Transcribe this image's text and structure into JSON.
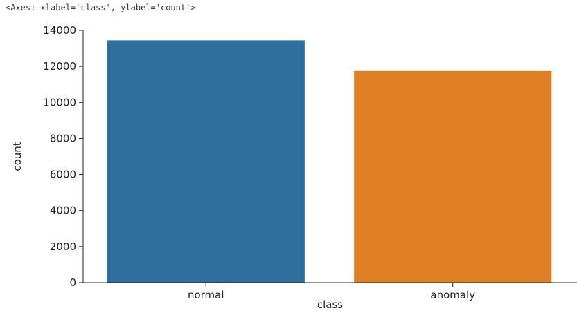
{
  "output_repr": "<Axes: xlabel='class', ylabel='count'>",
  "chart_data": {
    "type": "bar",
    "categories": [
      "normal",
      "anomaly"
    ],
    "values": [
      13449,
      11743
    ],
    "colors": [
      "#2e6f9e",
      "#e07f24"
    ],
    "xlabel": "class",
    "ylabel": "count",
    "ylim": [
      0,
      14000
    ],
    "yticks": [
      0,
      2000,
      4000,
      6000,
      8000,
      10000,
      12000,
      14000
    ],
    "grid": false
  }
}
